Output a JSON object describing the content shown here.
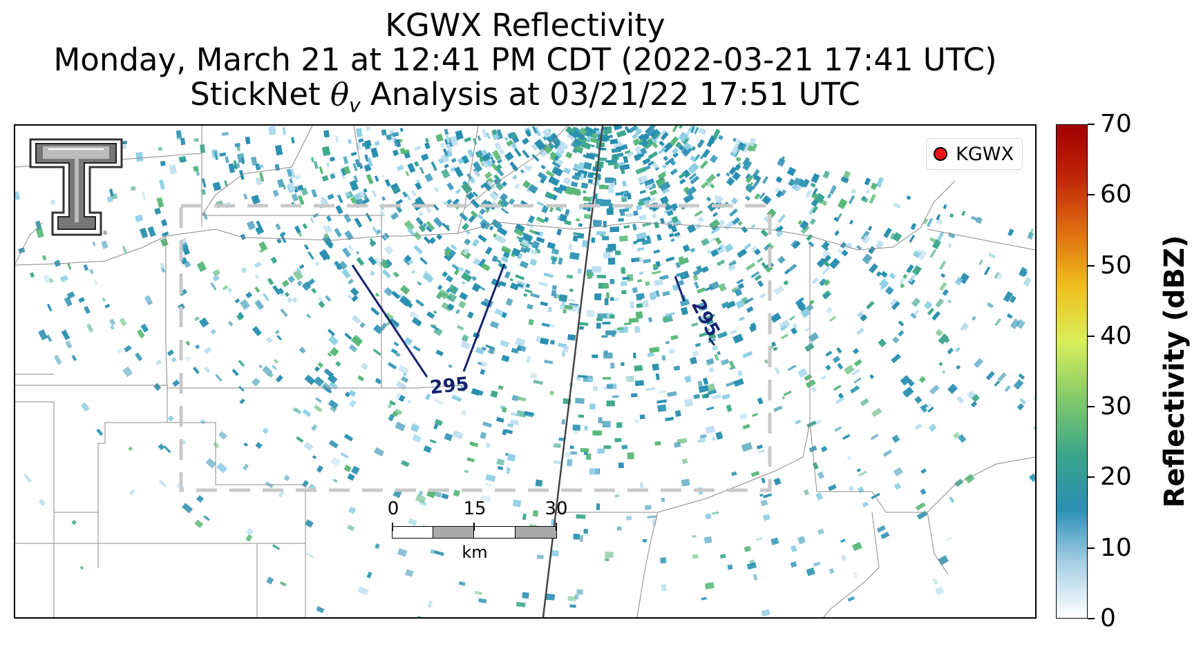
{
  "title": {
    "line1": "KGWX Reflectivity",
    "line2": "Monday, March 21 at 12:41 PM CDT (2022-03-21 17:41 UTC)",
    "line3_prefix": "StickNet ",
    "line3_symbol": "θ",
    "line3_subscript": "v",
    "line3_suffix": " Analysis at 03/21/22 17:51 UTC"
  },
  "legend": {
    "label": "KGWX",
    "marker_color": "#e8141c"
  },
  "colorbar": {
    "label": "Reflectivity (dBZ)",
    "ticks": [
      "0",
      "10",
      "20",
      "30",
      "40",
      "50",
      "60",
      "70"
    ],
    "min": 0,
    "max": 70,
    "colors": [
      "#ffffff",
      "#a8d0e6",
      "#2b8fb5",
      "#3aa58a",
      "#7ec86a",
      "#d9ef5a",
      "#f0c020",
      "#e07010",
      "#c02808",
      "#a00000"
    ]
  },
  "contours": [
    {
      "value": "295",
      "label": "295"
    },
    {
      "value": "295",
      "label": "295"
    }
  ],
  "scale_bar": {
    "labels": [
      "0",
      "15",
      "30"
    ],
    "unit": "km"
  },
  "colors": {
    "contour": "#14236e",
    "domain_box": "#c8c8c8",
    "county_lines": "#888888",
    "radar_teal": "#2a8fb0",
    "radar_green": "#4aaa7a"
  }
}
